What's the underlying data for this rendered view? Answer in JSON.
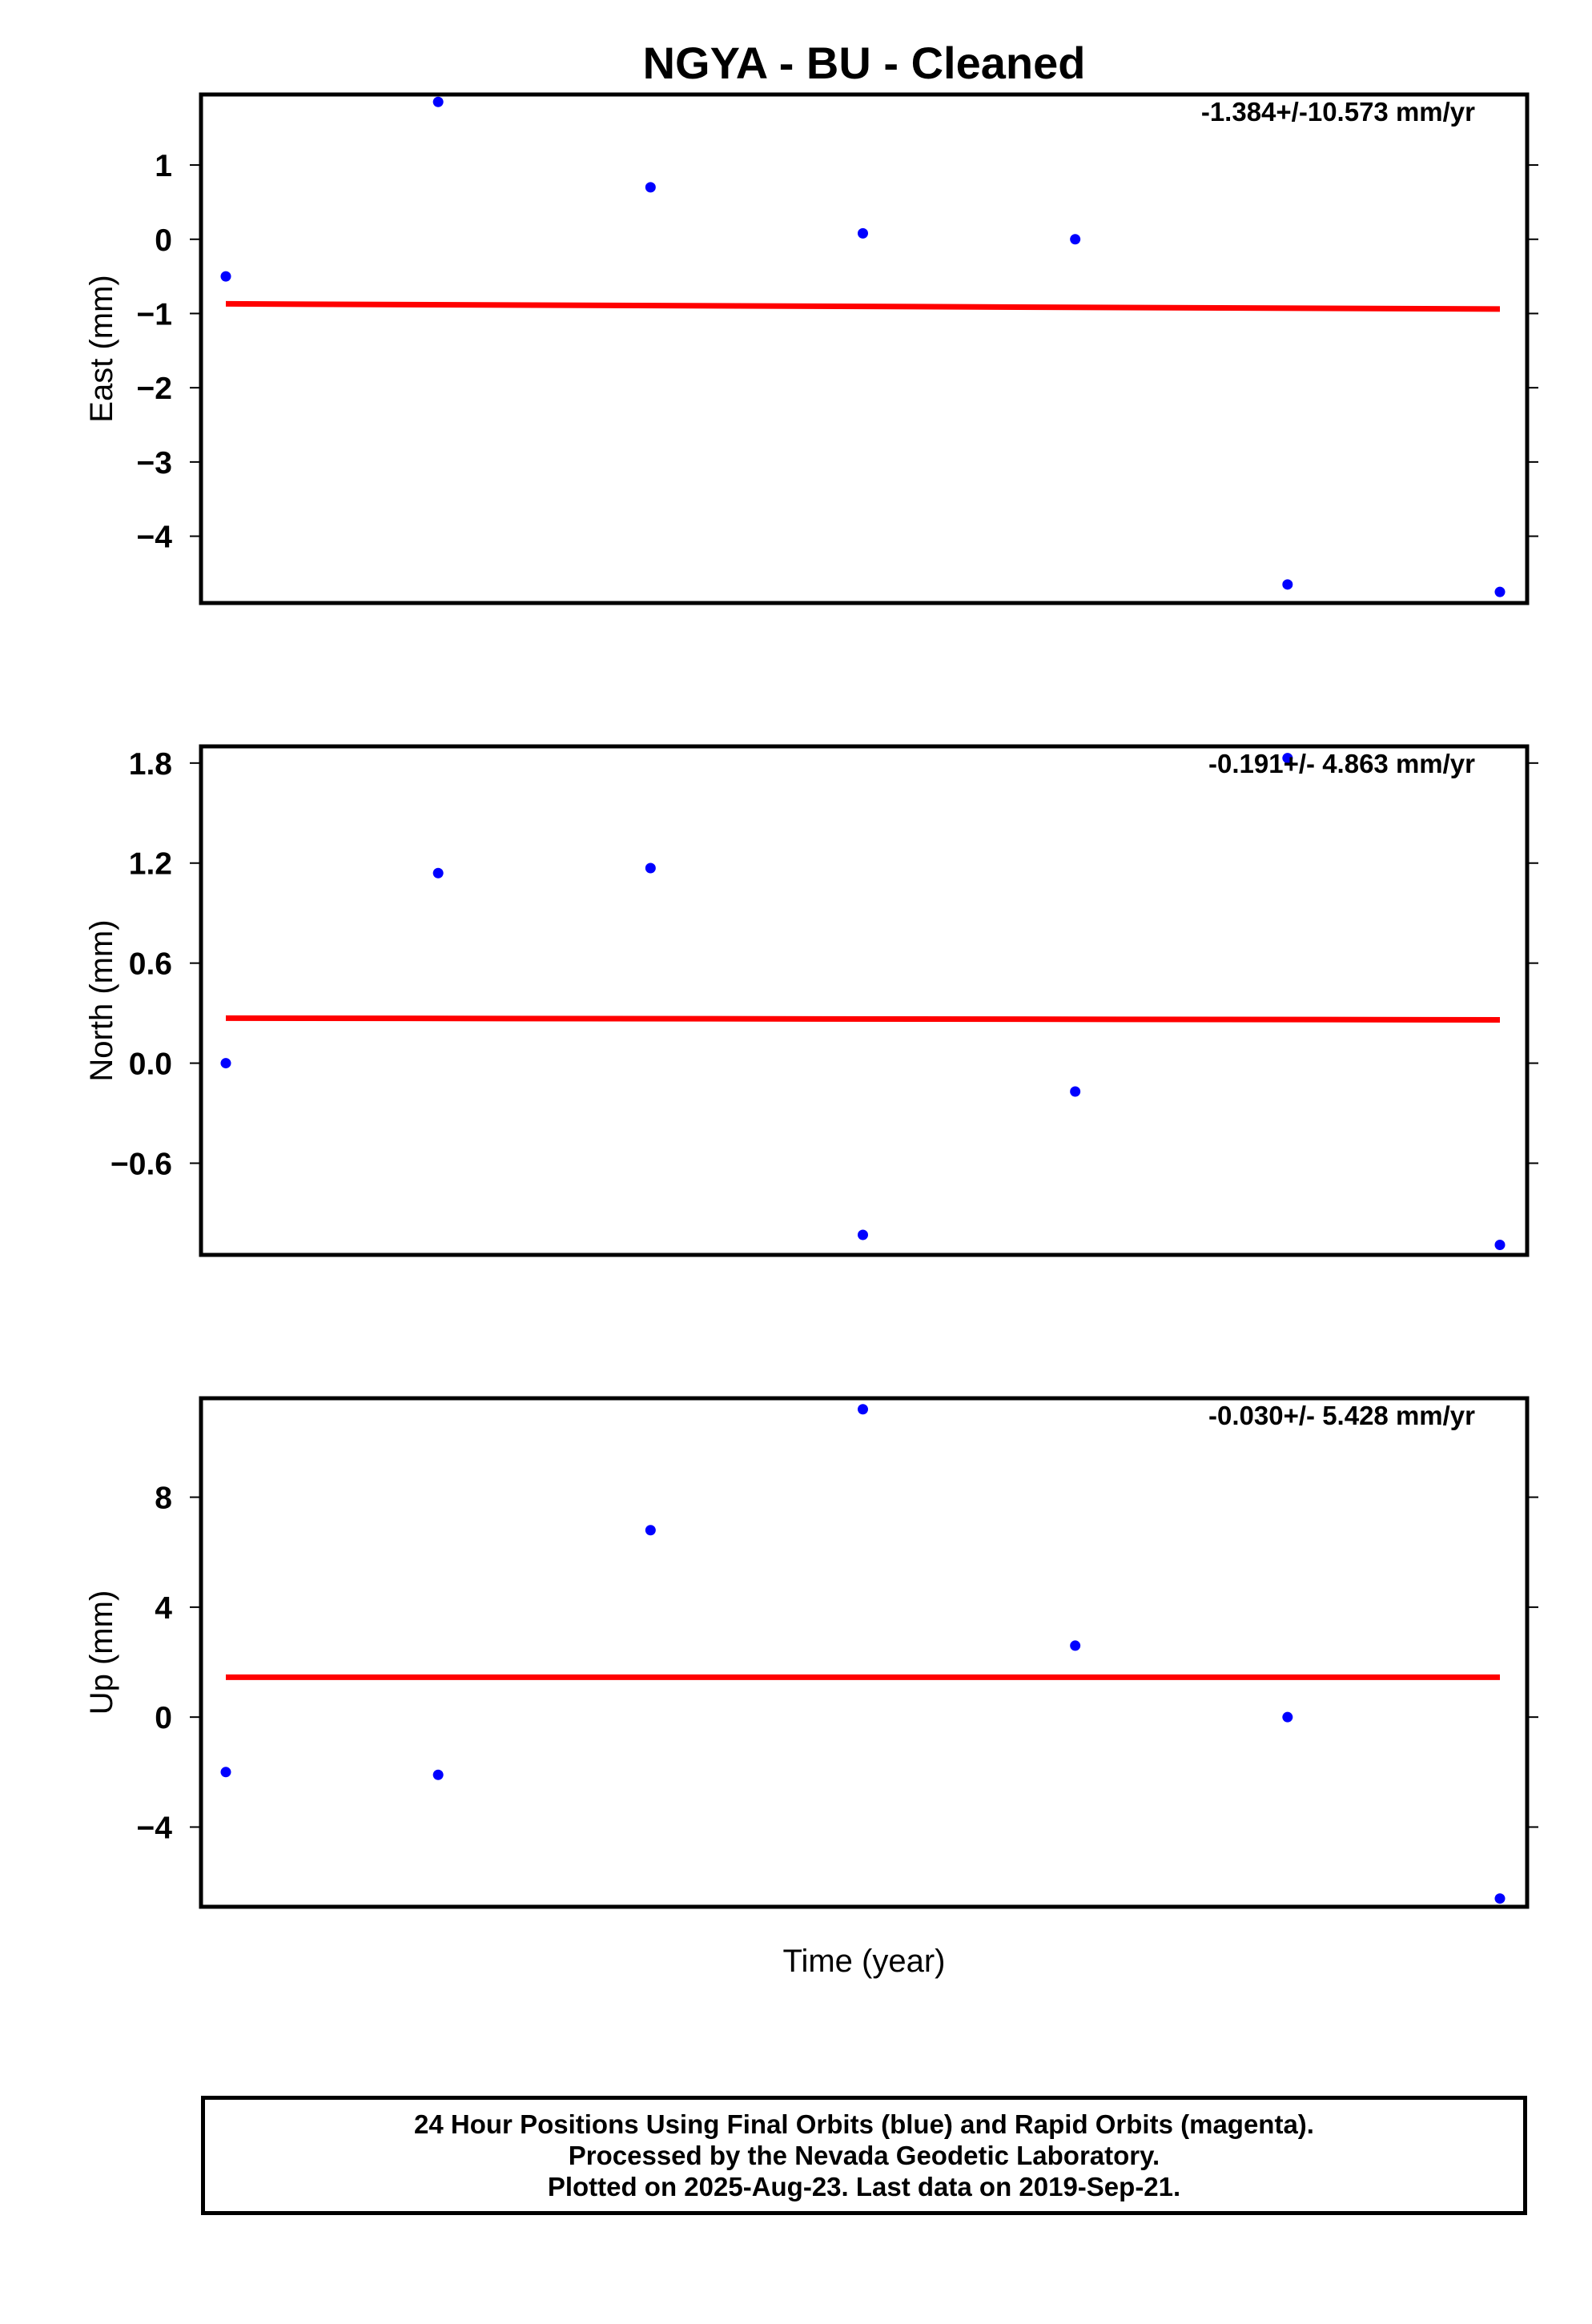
{
  "title": "NGYA  - BU - Cleaned",
  "xlabel": "Time (year)",
  "colors": {
    "points": "#0000ff",
    "trend": "#ff0000",
    "frame": "#000000"
  },
  "footer": {
    "line1": "24 Hour Positions Using Final Orbits (blue) and Rapid Orbits (magenta).",
    "line2": "Processed by the Nevada Geodetic Laboratory.",
    "line3": "Plotted on 2025-Aug-23. Last data on 2019-Sep-21."
  },
  "chart_data": [
    {
      "type": "scatter",
      "ylabel": "East (mm)",
      "rate_label": "-1.384+/-10.573 mm/yr",
      "ylim": [
        -4.9,
        1.95
      ],
      "yticks": [
        1,
        0,
        -1,
        -2,
        -3,
        -4
      ],
      "ytick_labels": [
        "1",
        "0",
        "−1",
        "−2",
        "−3",
        "−4"
      ],
      "x": [
        0,
        1,
        2,
        3,
        4,
        5,
        6
      ],
      "values": [
        -0.5,
        1.85,
        0.7,
        0.08,
        0.0,
        -4.65,
        -4.75
      ],
      "trend": [
        -0.87,
        -0.94
      ]
    },
    {
      "type": "scatter",
      "ylabel": "North (mm)",
      "rate_label": "-0.191+/- 4.863 mm/yr",
      "ylim": [
        -1.15,
        1.9
      ],
      "yticks": [
        1.8,
        1.2,
        0.6,
        0.0,
        -0.6
      ],
      "ytick_labels": [
        "1.8",
        "1.2",
        "0.6",
        "0.0",
        "−0.6"
      ],
      "x": [
        0,
        1,
        2,
        3,
        4,
        5,
        6
      ],
      "values": [
        0.0,
        1.14,
        1.17,
        -1.03,
        -0.17,
        1.83,
        -1.09
      ],
      "trend": [
        0.27,
        0.26
      ]
    },
    {
      "type": "scatter",
      "ylabel": "Up (mm)",
      "rate_label": "-0.030+/- 5.428 mm/yr",
      "ylim": [
        -6.9,
        11.6
      ],
      "yticks": [
        8,
        4,
        0,
        -4
      ],
      "ytick_labels": [
        "8",
        "4",
        "0",
        "−4"
      ],
      "x": [
        0,
        1,
        2,
        3,
        4,
        5,
        6
      ],
      "values": [
        -2.0,
        -2.1,
        6.8,
        11.2,
        2.6,
        0.0,
        -6.6
      ],
      "trend": [
        1.45,
        1.45
      ]
    }
  ]
}
